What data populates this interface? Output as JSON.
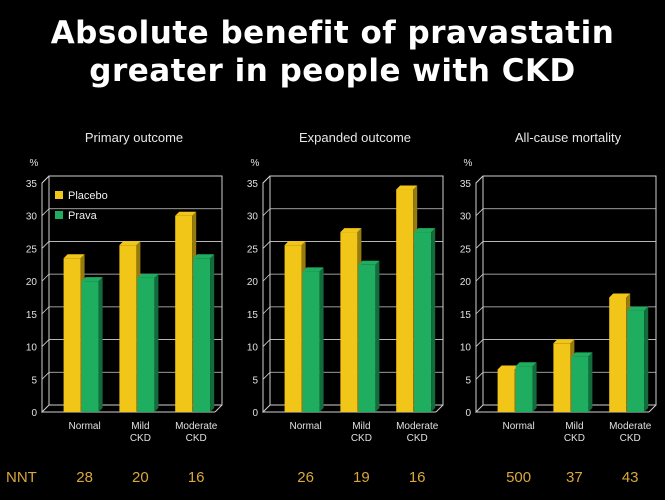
{
  "title_lines": [
    "Absolute benefit of pravastatin",
    "greater in people with CKD"
  ],
  "colors": {
    "placebo": "#f2c618",
    "prava": "#1fae5f",
    "nnt": "#d9a83a",
    "axis": "#cfcfcf"
  },
  "nnt_label": "NNT",
  "chart_data": [
    {
      "type": "bar",
      "title": "Primary outcome",
      "ylabel": "%",
      "ylim": [
        0,
        35
      ],
      "yticks": [
        "0",
        "5",
        "10",
        "15",
        "20",
        "25",
        "30",
        "35"
      ],
      "categories": [
        [
          "Normal"
        ],
        [
          "Mild",
          "CKD"
        ],
        [
          "Moderate",
          "CKD"
        ]
      ],
      "series": [
        {
          "name": "Placebo",
          "values": [
            23.5,
            25.5,
            30
          ]
        },
        {
          "name": "Prava",
          "values": [
            20,
            20.5,
            23.5
          ]
        }
      ],
      "legend": "top-left",
      "nnt": [
        "28",
        "20",
        "16"
      ]
    },
    {
      "type": "bar",
      "title": "Expanded outcome",
      "ylabel": "%",
      "ylim": [
        0,
        35
      ],
      "yticks": [
        "0",
        "5",
        "10",
        "15",
        "20",
        "25",
        "30",
        "35"
      ],
      "categories": [
        [
          "Normal"
        ],
        [
          "Mild",
          "CKD"
        ],
        [
          "Moderate",
          "CKD"
        ]
      ],
      "series": [
        {
          "name": "Placebo",
          "values": [
            25.5,
            27.5,
            34
          ]
        },
        {
          "name": "Prava",
          "values": [
            21.5,
            22.5,
            27.5
          ]
        }
      ],
      "nnt": [
        "26",
        "19",
        "16"
      ]
    },
    {
      "type": "bar",
      "title": "All-cause mortality",
      "ylabel": "%",
      "ylim": [
        0,
        35
      ],
      "yticks": [
        "0",
        "5",
        "10",
        "15",
        "20",
        "25",
        "30",
        "35"
      ],
      "categories": [
        [
          "Normal"
        ],
        [
          "Mild",
          "CKD"
        ],
        [
          "Moderate",
          "CKD"
        ]
      ],
      "series": [
        {
          "name": "Placebo",
          "values": [
            6.5,
            10.5,
            17.5
          ]
        },
        {
          "name": "Prava",
          "values": [
            7,
            8.5,
            15.5
          ]
        }
      ],
      "nnt": [
        "500",
        "37",
        "43"
      ]
    }
  ]
}
